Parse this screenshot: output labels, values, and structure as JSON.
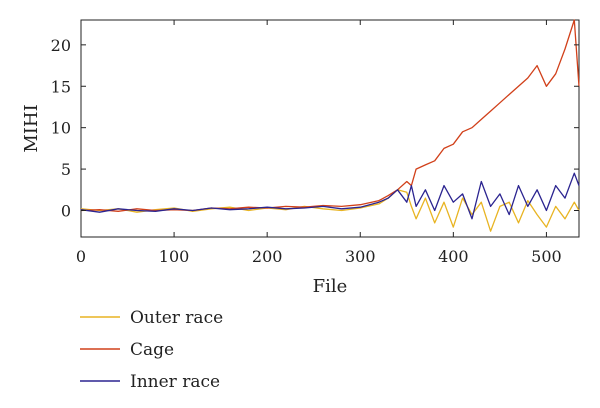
{
  "chart_data": {
    "type": "line",
    "xlabel": "File",
    "ylabel": "MIHI",
    "xlim": [
      0,
      535
    ],
    "ylim": [
      -3.2,
      23
    ],
    "x_ticks": [
      0,
      100,
      200,
      300,
      400,
      500
    ],
    "y_ticks": [
      0,
      5,
      10,
      15,
      20
    ],
    "grid": false,
    "legend_position": "below",
    "x": [
      0,
      20,
      40,
      60,
      80,
      100,
      120,
      140,
      160,
      180,
      200,
      220,
      240,
      260,
      280,
      300,
      320,
      330,
      340,
      350,
      355,
      360,
      370,
      380,
      390,
      400,
      410,
      420,
      430,
      440,
      450,
      460,
      470,
      480,
      490,
      500,
      510,
      520,
      530,
      535
    ],
    "series": [
      {
        "name": "Outer race",
        "color": "#E8B422",
        "values": [
          0.2,
          0.0,
          0.2,
          -0.2,
          0.1,
          0.3,
          -0.1,
          0.2,
          0.4,
          0.0,
          0.3,
          0.1,
          0.5,
          0.2,
          0.0,
          0.3,
          0.8,
          1.5,
          2.5,
          2.2,
          0.5,
          -1.0,
          1.5,
          -1.5,
          1.0,
          -2.0,
          1.5,
          -0.5,
          1.0,
          -2.5,
          0.5,
          1.0,
          -1.5,
          1.2,
          -0.5,
          -2.0,
          0.5,
          -1.0,
          1.0,
          0.0
        ]
      },
      {
        "name": "Cage",
        "color": "#D1401A",
        "values": [
          0.0,
          0.1,
          -0.1,
          0.2,
          0.0,
          0.1,
          0.0,
          0.3,
          0.2,
          0.4,
          0.3,
          0.5,
          0.4,
          0.6,
          0.5,
          0.7,
          1.2,
          1.8,
          2.5,
          3.5,
          3.0,
          5.0,
          5.5,
          6.0,
          7.5,
          8.0,
          9.5,
          10.0,
          11.0,
          12.0,
          13.0,
          14.0,
          15.0,
          16.0,
          17.5,
          15.0,
          16.5,
          19.5,
          23.0,
          15.0
        ]
      },
      {
        "name": "Inner race",
        "color": "#2B2490",
        "values": [
          0.1,
          -0.2,
          0.2,
          0.0,
          -0.1,
          0.2,
          0.0,
          0.3,
          0.1,
          0.2,
          0.4,
          0.2,
          0.3,
          0.5,
          0.2,
          0.4,
          1.0,
          1.5,
          2.5,
          1.0,
          3.0,
          0.5,
          2.5,
          0.0,
          3.0,
          1.0,
          2.0,
          -1.0,
          3.5,
          0.5,
          2.0,
          -0.5,
          3.0,
          0.5,
          2.5,
          0.0,
          3.0,
          1.5,
          4.5,
          3.0
        ]
      }
    ]
  }
}
